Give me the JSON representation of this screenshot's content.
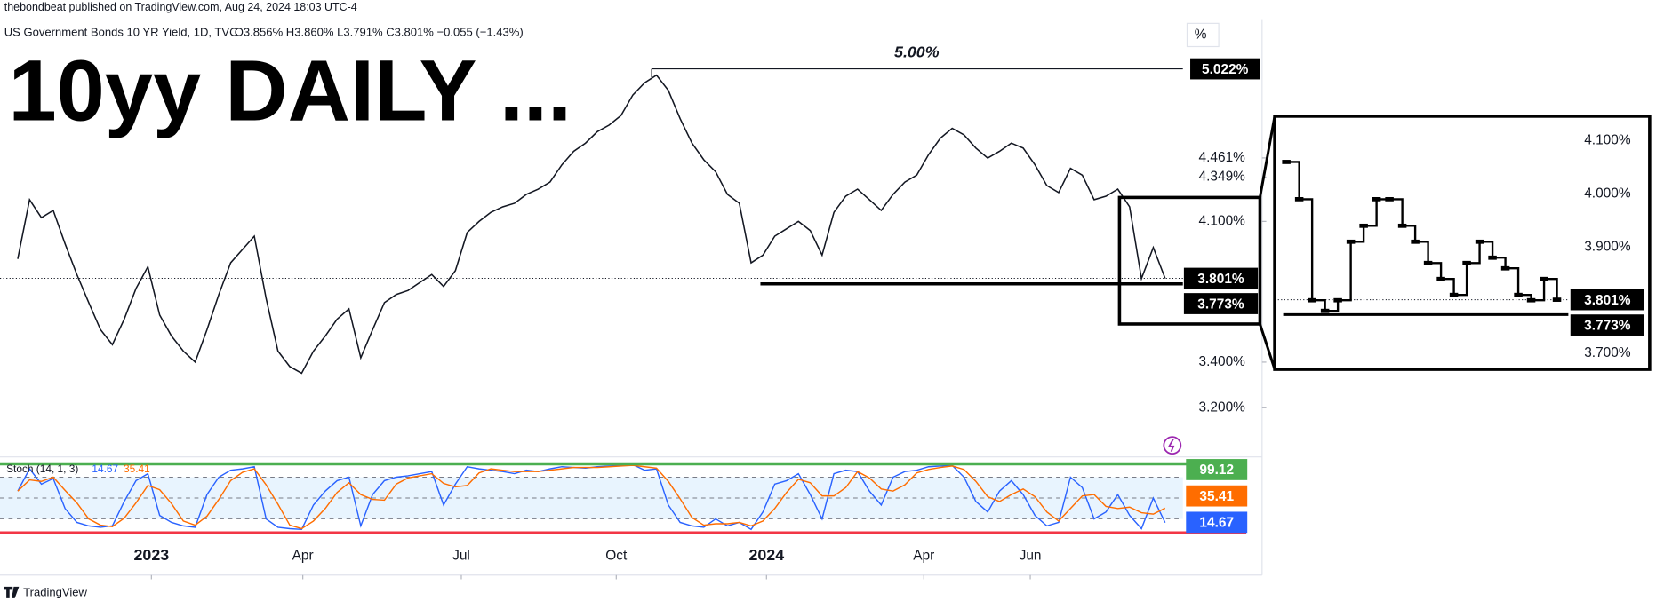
{
  "header": {
    "publisher": "thebondbeat published on TradingView.com, Aug 24, 2024 18:03 UTC-4",
    "symbol": "US Government Bonds 10 YR Yield, 1D, TVC",
    "ohlc": "O3.856% H3.860% L3.791% C3.801% −0.055 (−1.43%)",
    "scale_button": "%"
  },
  "chart_data": [
    {
      "type": "line",
      "headline": "10yy DAILY ...",
      "annotation": "5.00%",
      "log": true,
      "color": "#131722",
      "values": [
        3.9,
        4.22,
        4.12,
        4.16,
        3.98,
        3.82,
        3.68,
        3.55,
        3.48,
        3.6,
        3.75,
        3.86,
        3.62,
        3.52,
        3.45,
        3.4,
        3.55,
        3.72,
        3.88,
        3.95,
        4.02,
        3.7,
        3.45,
        3.38,
        3.35,
        3.45,
        3.52,
        3.6,
        3.65,
        3.42,
        3.55,
        3.68,
        3.72,
        3.74,
        3.78,
        3.82,
        3.76,
        3.84,
        4.04,
        4.1,
        4.15,
        4.18,
        4.2,
        4.25,
        4.28,
        4.32,
        4.42,
        4.5,
        4.55,
        4.62,
        4.66,
        4.72,
        4.85,
        4.93,
        4.98,
        4.88,
        4.7,
        4.55,
        4.45,
        4.38,
        4.25,
        4.2,
        3.88,
        3.92,
        4.02,
        4.06,
        4.1,
        4.05,
        3.92,
        4.15,
        4.24,
        4.28,
        4.22,
        4.16,
        4.25,
        4.32,
        4.36,
        4.48,
        4.58,
        4.64,
        4.6,
        4.52,
        4.46,
        4.5,
        4.55,
        4.52,
        4.42,
        4.3,
        4.26,
        4.4,
        4.36,
        4.22,
        4.24,
        4.28,
        4.18,
        3.8,
        3.96,
        3.801
      ],
      "xlim": [
        -1.5,
        98.5
      ],
      "xticks": [
        {
          "value": 11.3,
          "label": "2023"
        },
        {
          "value": 24.1,
          "label": "Apr"
        },
        {
          "value": 37.5,
          "label": "Jul"
        },
        {
          "value": 50.6,
          "label": "Oct"
        },
        {
          "value": 63.3,
          "label": "2024"
        },
        {
          "value": 76.6,
          "label": "Apr"
        },
        {
          "value": 85.6,
          "label": "Jun"
        }
      ],
      "ylim": [
        3.01,
        5.35
      ],
      "yticks": [
        {
          "value": 4.461,
          "label": "4.461%"
        },
        {
          "value": 4.349,
          "label": "4.349%"
        },
        {
          "value": 4.1,
          "label": "4.100%"
        },
        {
          "value": 3.4,
          "label": "3.400%"
        },
        {
          "value": 3.2,
          "label": "3.200%"
        }
      ],
      "levels": [
        {
          "value": 5.022,
          "label": "5.022%"
        },
        {
          "value": 3.773,
          "label": "3.773%"
        }
      ],
      "last": {
        "value": 3.801,
        "label": "3.801%"
      }
    },
    {
      "type": "stoch",
      "title": "Stoch (14, 1, 3)",
      "series": [
        {
          "color": "#2962ff",
          "values": [
            60,
            92,
            70,
            78,
            35,
            15,
            10,
            8,
            10,
            45,
            75,
            85,
            25,
            15,
            10,
            8,
            55,
            80,
            90,
            92,
            95,
            20,
            8,
            6,
            5,
            40,
            60,
            75,
            80,
            10,
            55,
            75,
            80,
            82,
            85,
            88,
            40,
            70,
            95,
            92,
            90,
            88,
            85,
            90,
            88,
            92,
            95,
            94,
            93,
            95,
            96,
            97,
            98,
            90,
            92,
            40,
            15,
            10,
            8,
            20,
            10,
            15,
            5,
            30,
            70,
            75,
            85,
            55,
            20,
            85,
            90,
            88,
            60,
            40,
            80,
            88,
            90,
            95,
            96,
            97,
            80,
            45,
            30,
            60,
            75,
            55,
            25,
            10,
            15,
            80,
            65,
            20,
            30,
            55,
            25,
            6,
            50,
            14.67
          ]
        },
        {
          "color": "#ff6d00",
          "values": [
            60,
            76,
            74,
            80,
            61,
            43,
            20,
            11,
            9,
            21,
            43,
            68,
            62,
            42,
            17,
            11,
            24,
            48,
            75,
            87,
            92,
            69,
            41,
            11,
            6,
            17,
            35,
            58,
            72,
            55,
            48,
            47,
            70,
            79,
            82,
            85,
            71,
            66,
            68,
            86,
            92,
            90,
            88,
            88,
            88,
            90,
            92,
            94,
            94,
            94,
            95,
            96,
            97,
            95,
            93,
            74,
            49,
            22,
            11,
            13,
            13,
            15,
            10,
            17,
            35,
            58,
            77,
            72,
            53,
            53,
            65,
            88,
            79,
            63,
            60,
            69,
            86,
            91,
            94,
            96,
            91,
            74,
            52,
            45,
            55,
            63,
            52,
            30,
            17,
            35,
            53,
            55,
            38,
            35,
            37,
            29,
            27,
            35.41
          ]
        }
      ],
      "ylim": [
        0,
        100
      ],
      "bands": [
        20,
        50,
        80
      ],
      "levels": [
        {
          "value": 99.12,
          "color": "#4caf50"
        },
        {
          "value": 0,
          "color": "#f23645"
        }
      ]
    },
    {
      "type": "step",
      "color": "#000000",
      "values": [
        4.06,
        3.99,
        3.8,
        3.78,
        3.8,
        3.91,
        3.94,
        3.99,
        3.99,
        3.94,
        3.91,
        3.87,
        3.84,
        3.81,
        3.87,
        3.91,
        3.88,
        3.86,
        3.81,
        3.8,
        3.84,
        3.801
      ],
      "ylim": [
        3.67,
        4.146
      ],
      "yticks": [
        {
          "value": 4.1,
          "label": "4.100%"
        },
        {
          "value": 4.0,
          "label": "4.000%"
        },
        {
          "value": 3.9,
          "label": "3.900%"
        },
        {
          "value": 3.7,
          "label": "3.700%"
        }
      ],
      "levels": [
        {
          "value": 3.773,
          "label": "3.773%"
        }
      ],
      "last": {
        "value": 3.801,
        "label": "3.801%"
      }
    }
  ],
  "footer": {
    "brand": "TradingView"
  }
}
